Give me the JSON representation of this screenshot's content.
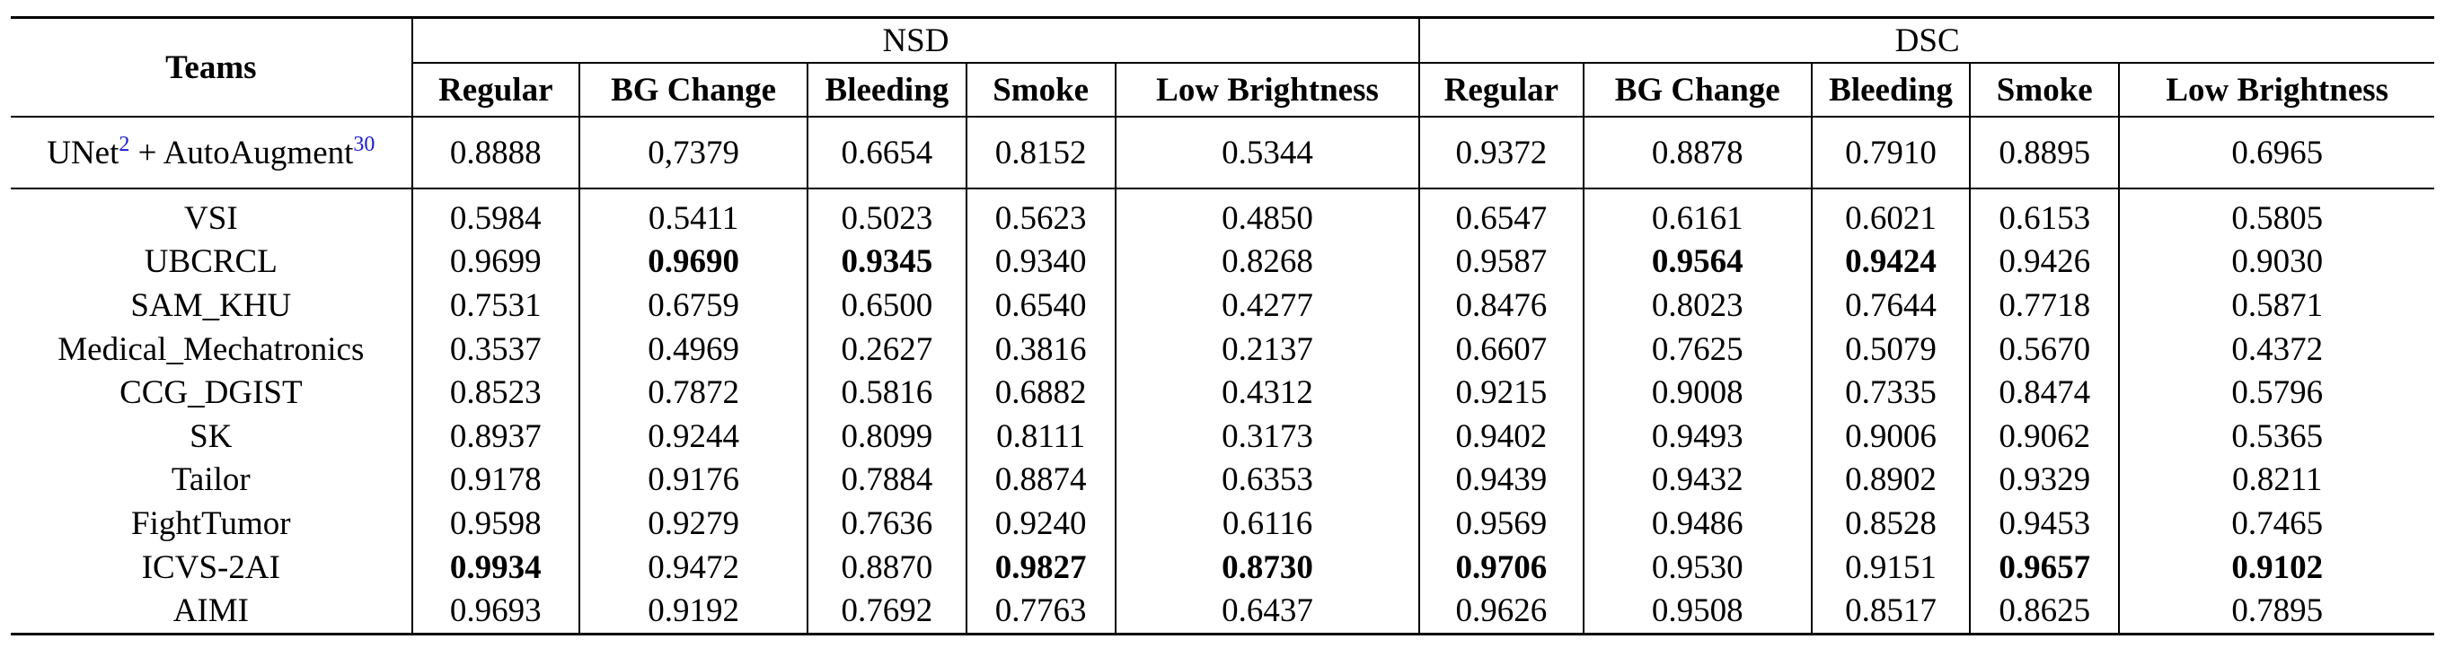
{
  "header": {
    "teams_label": "Teams",
    "group_nsd": "NSD",
    "group_dsc": "DSC",
    "columns": [
      "Regular",
      "BG Change",
      "Bleeding",
      "Smoke",
      "Low Brightness",
      "Regular",
      "BG Change",
      "Bleeding",
      "Smoke",
      "Low Brightness"
    ]
  },
  "baseline": {
    "name_prefix": "UNet",
    "ref1": "2",
    "name_middle": " + AutoAugment",
    "ref2": "30",
    "values": [
      "0.8888",
      "0,7379",
      "0.6654",
      "0.8152",
      "0.5344",
      "0.9372",
      "0.8878",
      "0.7910",
      "0.8895",
      "0.6965"
    ]
  },
  "rows": [
    {
      "team": "VSI",
      "values": [
        "0.5984",
        "0.5411",
        "0.5023",
        "0.5623",
        "0.4850",
        "0.6547",
        "0.6161",
        "0.6021",
        "0.6153",
        "0.5805"
      ],
      "bold": []
    },
    {
      "team": "UBCRCL",
      "values": [
        "0.9699",
        "0.9690",
        "0.9345",
        "0.9340",
        "0.8268",
        "0.9587",
        "0.9564",
        "0.9424",
        "0.9426",
        "0.9030"
      ],
      "bold": [
        1,
        2,
        6,
        7
      ]
    },
    {
      "team": "SAM_KHU",
      "values": [
        "0.7531",
        "0.6759",
        "0.6500",
        "0.6540",
        "0.4277",
        "0.8476",
        "0.8023",
        "0.7644",
        "0.7718",
        "0.5871"
      ],
      "bold": []
    },
    {
      "team": "Medical_Mechatronics",
      "values": [
        "0.3537",
        "0.4969",
        "0.2627",
        "0.3816",
        "0.2137",
        "0.6607",
        "0.7625",
        "0.5079",
        "0.5670",
        "0.4372"
      ],
      "bold": []
    },
    {
      "team": "CCG_DGIST",
      "values": [
        "0.8523",
        "0.7872",
        "0.5816",
        "0.6882",
        "0.4312",
        "0.9215",
        "0.9008",
        "0.7335",
        "0.8474",
        "0.5796"
      ],
      "bold": []
    },
    {
      "team": "SK",
      "values": [
        "0.8937",
        "0.9244",
        "0.8099",
        "0.8111",
        "0.3173",
        "0.9402",
        "0.9493",
        "0.9006",
        "0.9062",
        "0.5365"
      ],
      "bold": []
    },
    {
      "team": "Tailor",
      "values": [
        "0.9178",
        "0.9176",
        "0.7884",
        "0.8874",
        "0.6353",
        "0.9439",
        "0.9432",
        "0.8902",
        "0.9329",
        "0.8211"
      ],
      "bold": []
    },
    {
      "team": "FightTumor",
      "values": [
        "0.9598",
        "0.9279",
        "0.7636",
        "0.9240",
        "0.6116",
        "0.9569",
        "0.9486",
        "0.8528",
        "0.9453",
        "0.7465"
      ],
      "bold": []
    },
    {
      "team": "ICVS-2AI",
      "values": [
        "0.9934",
        "0.9472",
        "0.8870",
        "0.9827",
        "0.8730",
        "0.9706",
        "0.9530",
        "0.9151",
        "0.9657",
        "0.9102"
      ],
      "bold": [
        0,
        3,
        4,
        5,
        8,
        9
      ]
    },
    {
      "team": "AIMI",
      "values": [
        "0.9693",
        "0.9192",
        "0.7692",
        "0.7763",
        "0.6437",
        "0.9626",
        "0.9508",
        "0.8517",
        "0.8625",
        "0.7895"
      ],
      "bold": []
    }
  ]
}
